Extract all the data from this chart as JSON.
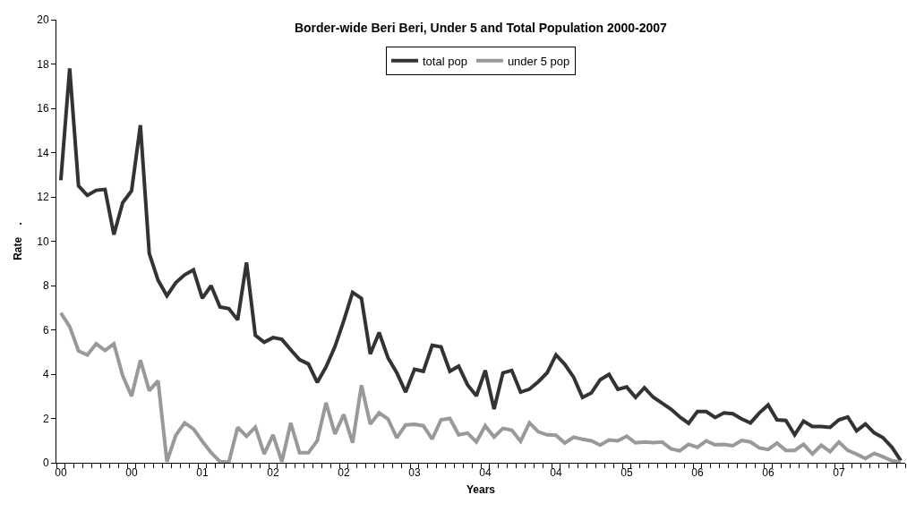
{
  "chart_data": {
    "type": "line",
    "title": "Border-wide Beri Beri, Under 5 and Total Population 2000-2007",
    "xlabel": "Years",
    "ylabel": "Rate    .",
    "categories": [
      "00",
      null,
      null,
      null,
      null,
      null,
      null,
      null,
      "00",
      null,
      null,
      null,
      null,
      null,
      null,
      null,
      "01",
      null,
      null,
      null,
      null,
      null,
      null,
      null,
      "02",
      null,
      null,
      null,
      null,
      null,
      null,
      null,
      "02",
      null,
      null,
      null,
      null,
      null,
      null,
      null,
      "03",
      null,
      null,
      null,
      null,
      null,
      null,
      null,
      "04",
      null,
      null,
      null,
      null,
      null,
      null,
      null,
      "04",
      null,
      null,
      null,
      null,
      null,
      null,
      null,
      "05",
      null,
      null,
      null,
      null,
      null,
      null,
      null,
      "06",
      null,
      null,
      null,
      null,
      null,
      null,
      null,
      "06",
      null,
      null,
      null,
      null,
      null,
      null,
      null,
      "07",
      null,
      null,
      null,
      null,
      null,
      null,
      null
    ],
    "series": [
      {
        "name": "total pop",
        "color": "#333333",
        "values": [
          12.75,
          17.8,
          12.5,
          12.07,
          12.3,
          12.34,
          10.3,
          11.74,
          12.27,
          15.24,
          9.45,
          8.24,
          7.54,
          8.13,
          8.48,
          8.71,
          7.43,
          7.99,
          7.03,
          6.96,
          6.45,
          9.04,
          5.75,
          5.44,
          5.65,
          5.57,
          5.1,
          4.65,
          4.46,
          3.63,
          4.33,
          5.24,
          6.41,
          7.69,
          7.42,
          4.91,
          5.88,
          4.74,
          4.06,
          3.19,
          4.22,
          4.13,
          5.3,
          5.23,
          4.13,
          4.36,
          3.52,
          3.02,
          4.17,
          2.42,
          4.06,
          4.17,
          3.19,
          3.32,
          3.66,
          4.06,
          4.87,
          4.44,
          3.86,
          2.95,
          3.15,
          3.75,
          3.99,
          3.32,
          3.42,
          2.95,
          3.39,
          2.96,
          2.69,
          2.42,
          2.07,
          1.78,
          2.31,
          2.31,
          2.04,
          2.25,
          2.21,
          1.98,
          1.8,
          2.25,
          2.61,
          1.94,
          1.91,
          1.26,
          1.88,
          1.64,
          1.64,
          1.6,
          1.94,
          2.07,
          1.44,
          1.75,
          1.35,
          1.13,
          0.7,
          0.1
        ]
      },
      {
        "name": "under 5 pop",
        "color": "#999999",
        "values": [
          6.76,
          6.15,
          5.05,
          4.87,
          5.37,
          5.07,
          5.37,
          3.93,
          3.01,
          4.63,
          3.26,
          3.7,
          0.05,
          1.24,
          1.8,
          1.53,
          0.97,
          0.46,
          0.05,
          0.03,
          1.6,
          1.2,
          1.61,
          0.4,
          1.26,
          0.05,
          1.8,
          0.45,
          0.45,
          0.99,
          2.71,
          1.3,
          2.18,
          0.9,
          3.5,
          1.75,
          2.25,
          1.98,
          1.13,
          1.71,
          1.74,
          1.67,
          1.07,
          1.94,
          2.0,
          1.26,
          1.34,
          0.94,
          1.67,
          1.16,
          1.55,
          1.47,
          0.97,
          1.8,
          1.4,
          1.26,
          1.24,
          0.89,
          1.16,
          1.06,
          0.99,
          0.8,
          1.03,
          0.99,
          1.2,
          0.9,
          0.94,
          0.91,
          0.94,
          0.63,
          0.54,
          0.83,
          0.7,
          0.99,
          0.81,
          0.83,
          0.77,
          1.01,
          0.94,
          0.67,
          0.6,
          0.89,
          0.56,
          0.56,
          0.83,
          0.4,
          0.79,
          0.5,
          0.94,
          0.56,
          0.39,
          0.19,
          0.43,
          0.27,
          0.09,
          0.03
        ]
      }
    ],
    "ylim": [
      0,
      20
    ],
    "yticks": [
      0,
      2,
      4,
      6,
      8,
      10,
      12,
      14,
      16,
      18,
      20
    ],
    "grid": false,
    "legend": "top",
    "marker": "none",
    "line_style": "solid"
  }
}
